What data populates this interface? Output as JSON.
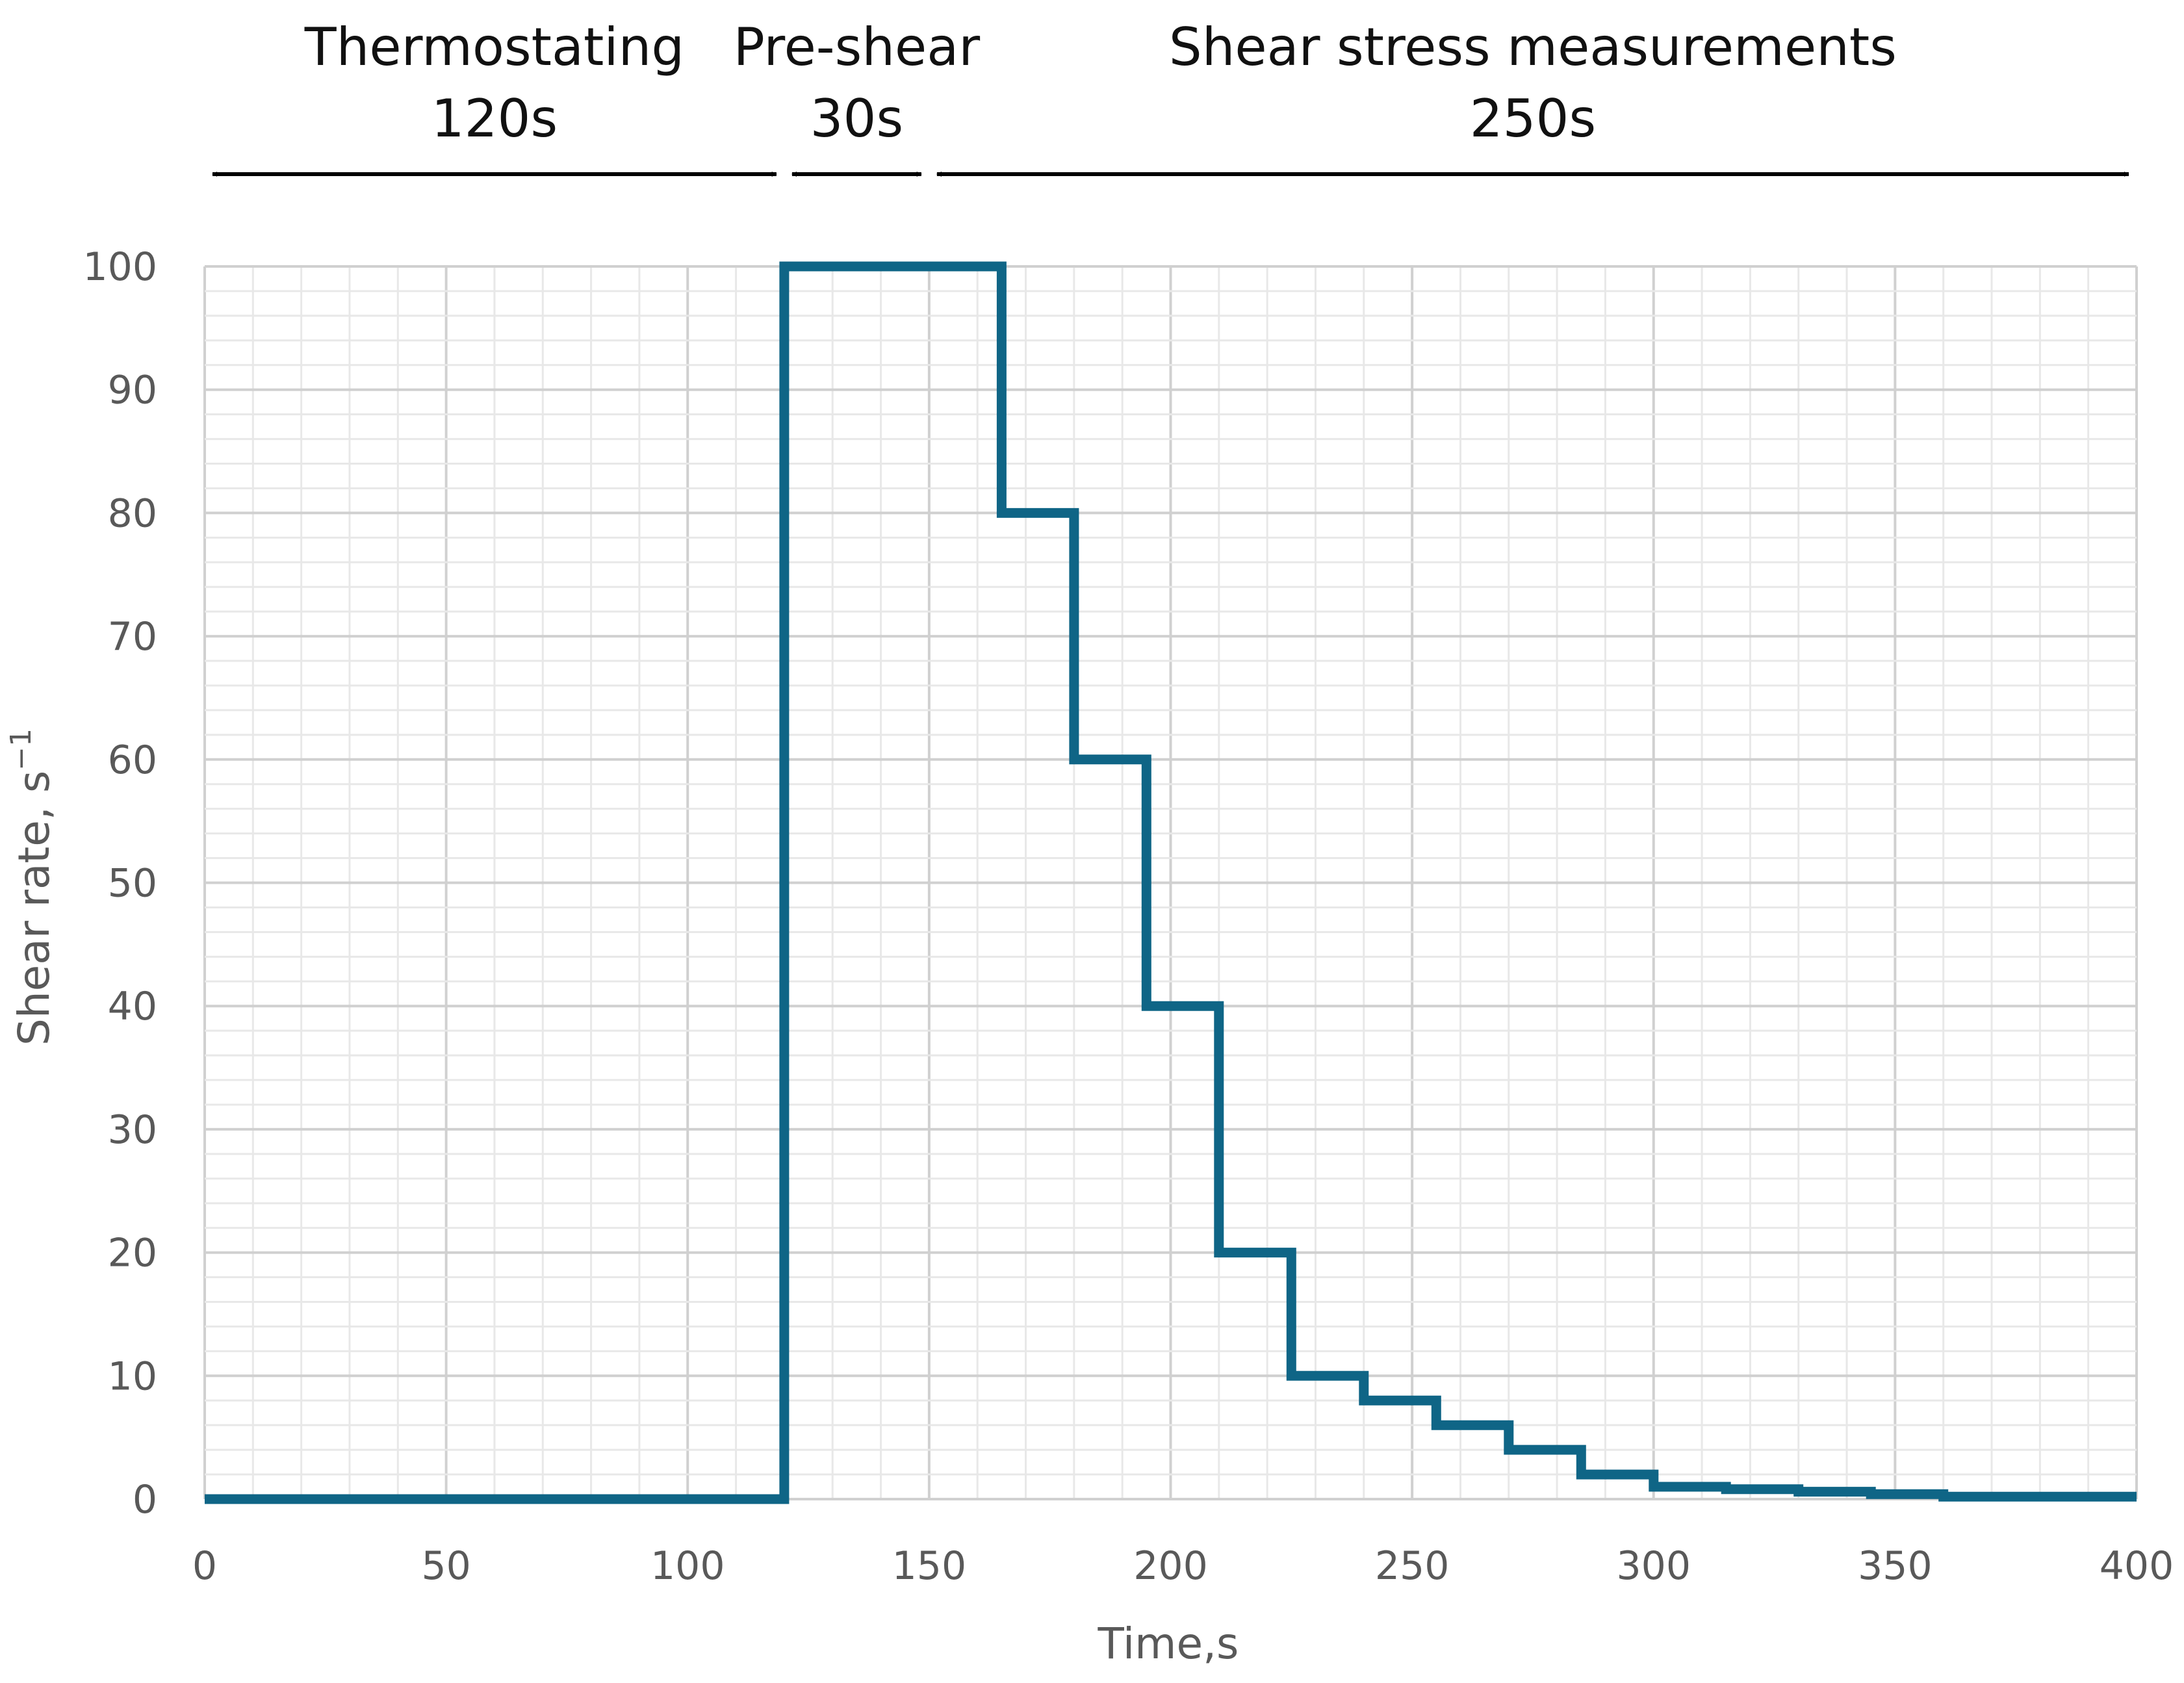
{
  "chart_data": {
    "type": "line",
    "title": "",
    "xlabel": "Time,s",
    "ylabel": "Shear rate, s",
    "ylabel_superscript": "−1",
    "xlim": [
      0,
      400
    ],
    "ylim": [
      0,
      100
    ],
    "x_ticks": [
      0,
      50,
      100,
      150,
      200,
      250,
      300,
      350,
      400
    ],
    "y_ticks": [
      0,
      10,
      20,
      30,
      40,
      50,
      60,
      70,
      80,
      90,
      100
    ],
    "x_minor_step": 10,
    "y_minor_step": 2,
    "grid": true,
    "legend": "none",
    "line_color": "#0f6586",
    "step_profile": true,
    "series": [
      {
        "x": [
          0,
          120,
          120,
          165,
          165,
          180,
          180,
          195,
          195,
          210,
          210,
          225,
          225,
          240,
          240,
          255,
          255,
          270,
          270,
          285,
          285,
          300,
          300,
          315,
          315,
          330,
          330,
          345,
          345,
          360,
          360,
          400
        ],
        "y": [
          0,
          0,
          100,
          100,
          80,
          80,
          60,
          60,
          40,
          40,
          20,
          20,
          10,
          10,
          8,
          8,
          6,
          6,
          4,
          4,
          2,
          2,
          1,
          1,
          0.8,
          0.8,
          0.6,
          0.6,
          0.4,
          0.4,
          0.2,
          0.2
        ]
      }
    ],
    "phases": [
      {
        "name": "Thermostating",
        "duration": "120s",
        "start": 0,
        "end": 120
      },
      {
        "name": "Pre-shear",
        "duration": "30s",
        "start": 120,
        "end": 150
      },
      {
        "name": "Shear stress measurements",
        "duration": "250s",
        "start": 150,
        "end": 400
      }
    ]
  }
}
